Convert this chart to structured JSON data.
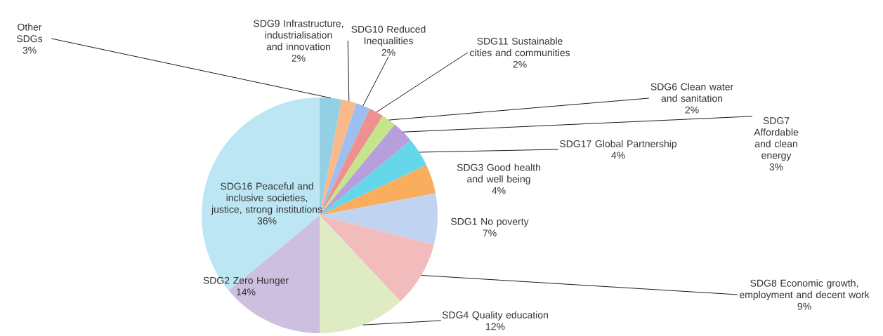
{
  "chart_data": {
    "type": "pie",
    "categories": [
      "Other SDGs",
      "SDG9 Infrastructure, industrialisation and innovation",
      "SDG10 Reduced Inequalities",
      "SDG11 Sustainable cities and communities",
      "SDG6 Clean water and sanitation",
      "SDG7 Affordable and clean energy",
      "SDG17 Global Partnership",
      "SDG3 Good health and well being",
      "SDG1 No poverty",
      "SDG8 Economic growth, employment and decent work",
      "SDG4 Quality education",
      "SDG2 Zero Hunger",
      "SDG16 Peaceful and inclusive societies, justice, strong institutions"
    ],
    "values": [
      3,
      2,
      2,
      2,
      2,
      3,
      4,
      4,
      7,
      9,
      12,
      14,
      36
    ],
    "value_labels": [
      "3%",
      "2%",
      "2%",
      "2%",
      "2%",
      "3%",
      "4%",
      "4%",
      "7%",
      "9%",
      "12%",
      "14%",
      "36%"
    ],
    "colors": [
      "#93d0e4",
      "#f9b98a",
      "#9cbff0",
      "#ef8f8f",
      "#c5e58a",
      "#b79fdc",
      "#66d6ea",
      "#f9ad5d",
      "#c0d3f0",
      "#f2bcbc",
      "#dfebc3",
      "#cdbfe0",
      "#bde6f4"
    ]
  }
}
